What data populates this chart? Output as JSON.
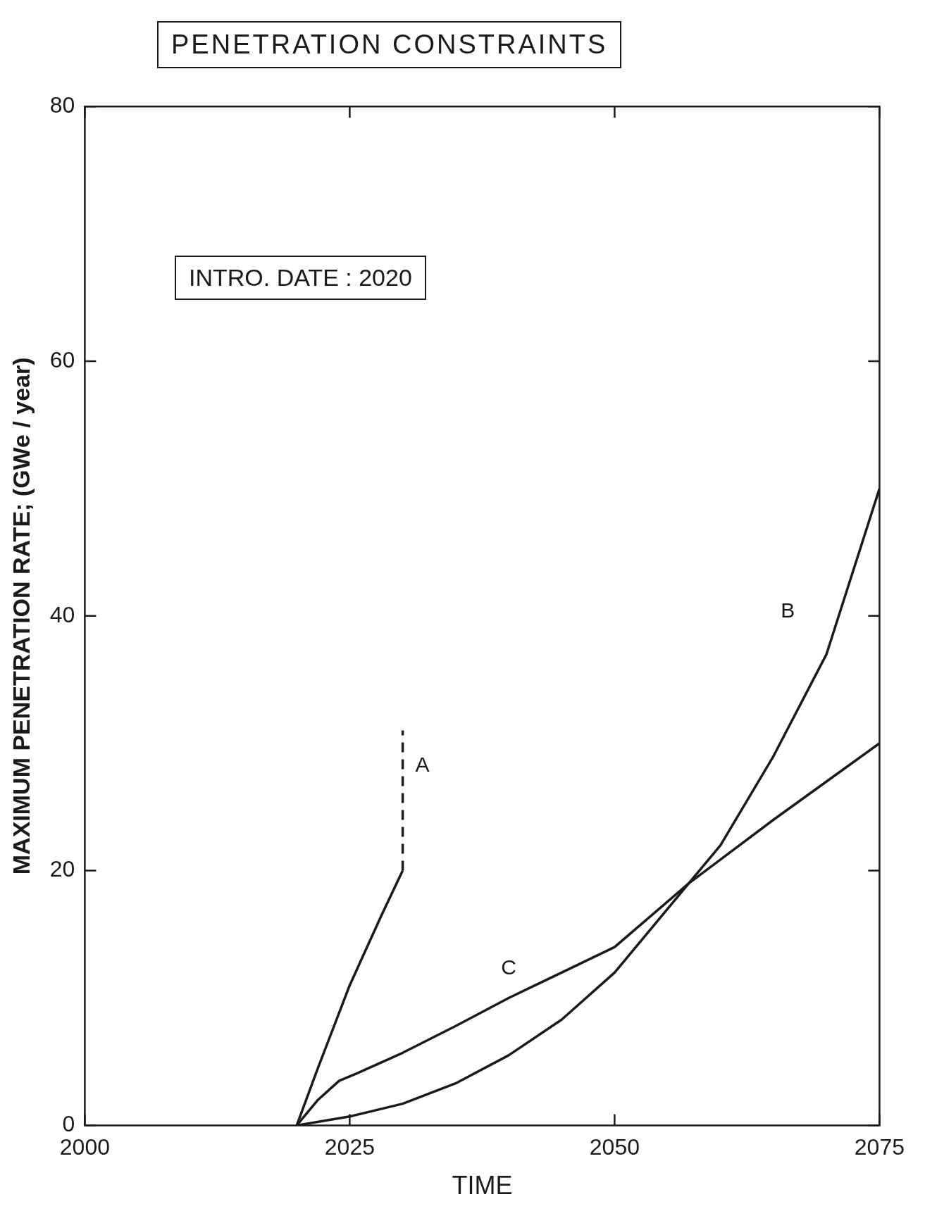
{
  "chart_data": {
    "type": "line",
    "title": "PENETRATION CONSTRAINTS",
    "xlabel": "TIME",
    "ylabel": "MAXIMUM PENETRATION RATE; (GWe / year)",
    "xlim": [
      2000,
      2075
    ],
    "xticks": [
      2000,
      2025,
      2050,
      2075
    ],
    "ylim": [
      0,
      80
    ],
    "yticks": [
      0,
      20,
      40,
      60,
      80
    ],
    "grid": false,
    "legend": false,
    "marker": "none",
    "series": [
      {
        "color": "#1a1a1a",
        "x": [
          2020,
          2022,
          2025,
          2028,
          2030
        ],
        "values": [
          0,
          4.5,
          11,
          16.5,
          20
        ]
      },
      {
        "name": "A",
        "color": "#1a1a1a",
        "line_style": "dashed",
        "x": [
          2030,
          2030
        ],
        "values": [
          20,
          31
        ]
      },
      {
        "name": "B",
        "color": "#1a1a1a",
        "x": [
          2020,
          2025,
          2030,
          2035,
          2040,
          2045,
          2050,
          2055,
          2057,
          2060,
          2065,
          2070,
          2075
        ],
        "values": [
          0,
          0.7,
          1.7,
          3.3,
          5.5,
          8.3,
          12,
          17,
          19,
          22,
          29,
          37,
          50
        ]
      },
      {
        "name": "C",
        "color": "#1a1a1a",
        "x": [
          2020,
          2022,
          2024,
          2026,
          2030,
          2035,
          2040,
          2045,
          2050,
          2057,
          2065,
          2075
        ],
        "values": [
          0,
          2,
          3.5,
          4.2,
          5.7,
          7.8,
          10,
          12,
          14,
          19,
          24,
          30
        ]
      }
    ],
    "annotations": [
      "INTRO. DATE : 2020"
    ]
  }
}
